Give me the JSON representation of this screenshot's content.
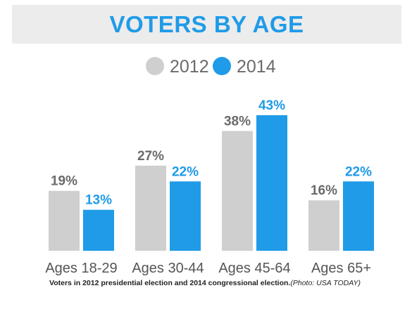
{
  "colors": {
    "accent": "#1f9be8",
    "series_2012": "#cfcfcf",
    "series_2014": "#1f9be8",
    "title_bg": "#ececec"
  },
  "chart_data": {
    "type": "bar",
    "title": "VOTERS BY AGE",
    "categories": [
      "Ages 18-29",
      "Ages 30-44",
      "Ages 45-64",
      "Ages 65+"
    ],
    "series": [
      {
        "name": "2012",
        "values": [
          19,
          27,
          38,
          16
        ],
        "labels": [
          "19%",
          "27%",
          "38%",
          "16%"
        ],
        "color": "#cfcfcf"
      },
      {
        "name": "2014",
        "values": [
          13,
          22,
          43,
          22
        ],
        "labels": [
          "13%",
          "22%",
          "43%",
          "22%"
        ],
        "color": "#1f9be8"
      }
    ],
    "ylim": [
      0,
      43
    ],
    "grid": false,
    "legend": "top-center"
  },
  "caption": {
    "text": "Voters in 2012 presidential election and 2014 congressional election.",
    "credit": "(Photo: USA TODAY)"
  }
}
